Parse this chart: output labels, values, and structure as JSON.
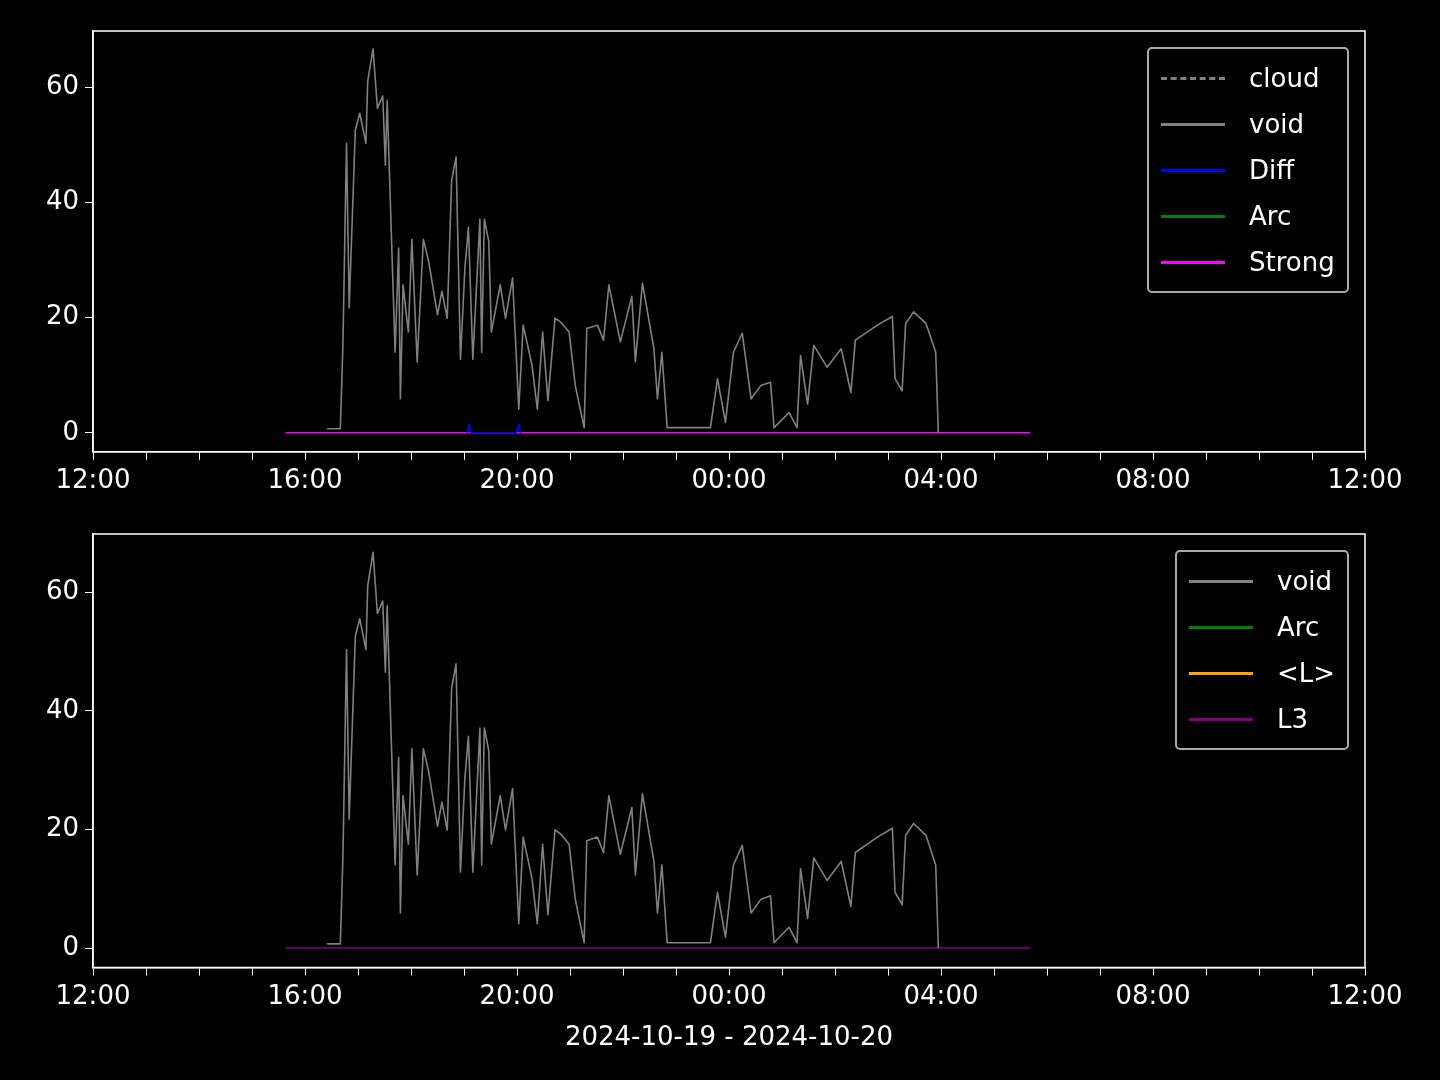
{
  "chart_data": [
    {
      "type": "line",
      "xlim": [
        "2024-10-19T12:00",
        "2024-10-20T12:00"
      ],
      "ylim": [
        -3.3,
        69.8
      ],
      "yticks": [
        0,
        20,
        40,
        60
      ],
      "grid": false,
      "legend": "top right",
      "xticks": [
        {
          "value": "2024-10-19T12:00",
          "label": "12:00"
        },
        {
          "value": "2024-10-19T13:00",
          "label": null
        },
        {
          "value": "2024-10-19T14:00",
          "label": null
        },
        {
          "value": "2024-10-19T15:00",
          "label": null
        },
        {
          "value": "2024-10-19T16:00",
          "label": "16:00"
        },
        {
          "value": "2024-10-19T17:00",
          "label": null
        },
        {
          "value": "2024-10-19T18:00",
          "label": null
        },
        {
          "value": "2024-10-19T19:00",
          "label": null
        },
        {
          "value": "2024-10-19T20:00",
          "label": "20:00"
        },
        {
          "value": "2024-10-19T21:00",
          "label": null
        },
        {
          "value": "2024-10-19T22:00",
          "label": null
        },
        {
          "value": "2024-10-19T23:00",
          "label": null
        },
        {
          "value": "2024-10-20T00:00",
          "label": "00:00"
        },
        {
          "value": "2024-10-20T01:00",
          "label": null
        },
        {
          "value": "2024-10-20T02:00",
          "label": null
        },
        {
          "value": "2024-10-20T03:00",
          "label": null
        },
        {
          "value": "2024-10-20T04:00",
          "label": "04:00"
        },
        {
          "value": "2024-10-20T05:00",
          "label": null
        },
        {
          "value": "2024-10-20T06:00",
          "label": null
        },
        {
          "value": "2024-10-20T07:00",
          "label": null
        },
        {
          "value": "2024-10-20T08:00",
          "label": "08:00"
        },
        {
          "value": "2024-10-20T09:00",
          "label": null
        },
        {
          "value": "2024-10-20T10:00",
          "label": null
        },
        {
          "value": "2024-10-20T11:00",
          "label": null
        },
        {
          "value": "2024-10-20T12:00",
          "label": "12:00"
        }
      ],
      "series": [
        {
          "name": "cloud",
          "color": "#808080",
          "line_style": "dashed"
        },
        {
          "name": "void",
          "color": "#808080",
          "x": [
            "2024-10-19T16:25",
            "2024-10-19T16:40",
            "2024-10-19T16:43",
            "2024-10-19T16:47",
            "2024-10-19T16:50",
            "2024-10-19T16:57",
            "2024-10-19T17:02",
            "2024-10-19T17:09",
            "2024-10-19T17:11",
            "2024-10-19T17:17",
            "2024-10-19T17:22",
            "2024-10-19T17:28",
            "2024-10-19T17:31",
            "2024-10-19T17:33",
            "2024-10-19T17:39",
            "2024-10-19T17:42",
            "2024-10-19T17:46",
            "2024-10-19T17:48",
            "2024-10-19T17:51",
            "2024-10-19T17:57",
            "2024-10-19T18:01",
            "2024-10-19T18:07",
            "2024-10-19T18:14",
            "2024-10-19T18:20",
            "2024-10-19T18:30",
            "2024-10-19T18:35",
            "2024-10-19T18:41",
            "2024-10-19T18:46",
            "2024-10-19T18:51",
            "2024-10-19T18:56",
            "2024-10-19T19:01",
            "2024-10-19T19:05",
            "2024-10-19T19:10",
            "2024-10-19T19:18",
            "2024-10-19T19:20",
            "2024-10-19T19:23",
            "2024-10-19T19:28",
            "2024-10-19T19:31",
            "2024-10-19T19:41",
            "2024-10-19T19:47",
            "2024-10-19T19:55",
            "2024-10-19T20:02",
            "2024-10-19T20:07",
            "2024-10-19T20:17",
            "2024-10-19T20:23",
            "2024-10-19T20:29",
            "2024-10-19T20:35",
            "2024-10-19T20:43",
            "2024-10-19T20:49",
            "2024-10-19T20:59",
            "2024-10-19T21:06",
            "2024-10-19T21:16",
            "2024-10-19T21:19",
            "2024-10-19T21:31",
            "2024-10-19T21:38",
            "2024-10-19T21:44",
            "2024-10-19T21:57",
            "2024-10-19T22:10",
            "2024-10-19T22:14",
            "2024-10-19T22:22",
            "2024-10-19T22:35",
            "2024-10-19T22:39",
            "2024-10-19T22:44",
            "2024-10-19T22:50",
            "2024-10-19T23:39",
            "2024-10-19T23:47",
            "2024-10-19T23:56",
            "2024-10-20T00:05",
            "2024-10-20T00:15",
            "2024-10-20T00:25",
            "2024-10-20T00:36",
            "2024-10-20T00:47",
            "2024-10-20T00:51",
            "2024-10-20T01:08",
            "2024-10-20T01:17",
            "2024-10-20T01:21",
            "2024-10-20T01:29",
            "2024-10-20T01:36",
            "2024-10-20T01:51",
            "2024-10-20T02:07",
            "2024-10-20T02:18",
            "2024-10-20T02:23",
            "2024-10-20T02:48",
            "2024-10-20T03:05",
            "2024-10-20T03:08",
            "2024-10-20T03:16",
            "2024-10-20T03:20",
            "2024-10-20T03:29",
            "2024-10-20T03:43",
            "2024-10-20T03:54",
            "2024-10-20T03:57"
          ],
          "values": [
            0.7,
            0.7,
            15.8,
            50.3,
            21.7,
            52.6,
            55.5,
            50.3,
            61.1,
            66.7,
            56.4,
            58.5,
            46.5,
            57.7,
            28.6,
            14,
            32.1,
            5.9,
            25.7,
            17.5,
            33.6,
            12.3,
            33.6,
            29.8,
            20.5,
            24.6,
            19.9,
            43.8,
            47.9,
            12.8,
            28.6,
            35.7,
            12.8,
            37.1,
            14,
            37.1,
            33.3,
            17.5,
            25.7,
            19.9,
            26.9,
            4.1,
            18.7,
            11.7,
            4.1,
            17.5,
            5.6,
            19.9,
            19.3,
            17.5,
            8.2,
            0.9,
            18.1,
            18.7,
            16.1,
            25.7,
            15.8,
            23.7,
            12.3,
            26,
            14.6,
            5.9,
            14,
            0.9,
            0.9,
            9.4,
            1.8,
            14,
            17.3,
            5.9,
            8.2,
            8.8,
            0.9,
            3.5,
            0.9,
            13.4,
            5,
            15.2,
            11.4,
            14.6,
            7,
            16.1,
            18.7,
            20.2,
            9.4,
            7.3,
            19,
            21,
            19,
            14,
            0
          ]
        },
        {
          "name": "Diff",
          "color": "#0000ff",
          "x": [
            "2024-10-19T19:04",
            "2024-10-19T19:06",
            "2024-10-19T19:08",
            "2024-10-19T19:59",
            "2024-10-19T20:02",
            "2024-10-19T20:04"
          ],
          "values": [
            0,
            1.5,
            0,
            0,
            1.5,
            0
          ]
        },
        {
          "name": "Arc",
          "color": "#008000"
        },
        {
          "name": "Strong",
          "color": "#ff00ff",
          "x": [
            "2024-10-19T15:38",
            "2024-10-20T05:41"
          ],
          "values": [
            0,
            0
          ]
        }
      ]
    },
    {
      "type": "line",
      "xlim": [
        "2024-10-19T12:00",
        "2024-10-20T12:00"
      ],
      "ylim": [
        -3.3,
        69.8
      ],
      "yticks": [
        0,
        20,
        40,
        60
      ],
      "grid": false,
      "legend": "top right",
      "xlabel": "2024-10-19 - 2024-10-20",
      "xticks": [
        {
          "value": "2024-10-19T12:00",
          "label": "12:00"
        },
        {
          "value": "2024-10-19T13:00",
          "label": null
        },
        {
          "value": "2024-10-19T14:00",
          "label": null
        },
        {
          "value": "2024-10-19T15:00",
          "label": null
        },
        {
          "value": "2024-10-19T16:00",
          "label": "16:00"
        },
        {
          "value": "2024-10-19T17:00",
          "label": null
        },
        {
          "value": "2024-10-19T18:00",
          "label": null
        },
        {
          "value": "2024-10-19T19:00",
          "label": null
        },
        {
          "value": "2024-10-19T20:00",
          "label": "20:00"
        },
        {
          "value": "2024-10-19T21:00",
          "label": null
        },
        {
          "value": "2024-10-19T22:00",
          "label": null
        },
        {
          "value": "2024-10-19T23:00",
          "label": null
        },
        {
          "value": "2024-10-20T00:00",
          "label": "00:00"
        },
        {
          "value": "2024-10-20T01:00",
          "label": null
        },
        {
          "value": "2024-10-20T02:00",
          "label": null
        },
        {
          "value": "2024-10-20T03:00",
          "label": null
        },
        {
          "value": "2024-10-20T04:00",
          "label": "04:00"
        },
        {
          "value": "2024-10-20T05:00",
          "label": null
        },
        {
          "value": "2024-10-20T06:00",
          "label": null
        },
        {
          "value": "2024-10-20T07:00",
          "label": null
        },
        {
          "value": "2024-10-20T08:00",
          "label": "08:00"
        },
        {
          "value": "2024-10-20T09:00",
          "label": null
        },
        {
          "value": "2024-10-20T10:00",
          "label": null
        },
        {
          "value": "2024-10-20T11:00",
          "label": null
        },
        {
          "value": "2024-10-20T12:00",
          "label": "12:00"
        }
      ],
      "series": [
        {
          "name": "void",
          "color": "#808080",
          "x": [
            "2024-10-19T16:25",
            "2024-10-19T16:40",
            "2024-10-19T16:43",
            "2024-10-19T16:47",
            "2024-10-19T16:50",
            "2024-10-19T16:57",
            "2024-10-19T17:02",
            "2024-10-19T17:09",
            "2024-10-19T17:11",
            "2024-10-19T17:17",
            "2024-10-19T17:22",
            "2024-10-19T17:28",
            "2024-10-19T17:31",
            "2024-10-19T17:33",
            "2024-10-19T17:39",
            "2024-10-19T17:42",
            "2024-10-19T17:46",
            "2024-10-19T17:48",
            "2024-10-19T17:51",
            "2024-10-19T17:57",
            "2024-10-19T18:01",
            "2024-10-19T18:07",
            "2024-10-19T18:14",
            "2024-10-19T18:20",
            "2024-10-19T18:30",
            "2024-10-19T18:35",
            "2024-10-19T18:41",
            "2024-10-19T18:46",
            "2024-10-19T18:51",
            "2024-10-19T18:56",
            "2024-10-19T19:01",
            "2024-10-19T19:05",
            "2024-10-19T19:10",
            "2024-10-19T19:18",
            "2024-10-19T19:20",
            "2024-10-19T19:23",
            "2024-10-19T19:28",
            "2024-10-19T19:31",
            "2024-10-19T19:41",
            "2024-10-19T19:47",
            "2024-10-19T19:55",
            "2024-10-19T20:02",
            "2024-10-19T20:07",
            "2024-10-19T20:17",
            "2024-10-19T20:23",
            "2024-10-19T20:29",
            "2024-10-19T20:35",
            "2024-10-19T20:43",
            "2024-10-19T20:49",
            "2024-10-19T20:59",
            "2024-10-19T21:06",
            "2024-10-19T21:16",
            "2024-10-19T21:19",
            "2024-10-19T21:31",
            "2024-10-19T21:38",
            "2024-10-19T21:44",
            "2024-10-19T21:57",
            "2024-10-19T22:10",
            "2024-10-19T22:14",
            "2024-10-19T22:22",
            "2024-10-19T22:35",
            "2024-10-19T22:39",
            "2024-10-19T22:44",
            "2024-10-19T22:50",
            "2024-10-19T23:39",
            "2024-10-19T23:47",
            "2024-10-19T23:56",
            "2024-10-20T00:05",
            "2024-10-20T00:15",
            "2024-10-20T00:25",
            "2024-10-20T00:36",
            "2024-10-20T00:47",
            "2024-10-20T00:51",
            "2024-10-20T01:08",
            "2024-10-20T01:17",
            "2024-10-20T01:21",
            "2024-10-20T01:29",
            "2024-10-20T01:36",
            "2024-10-20T01:51",
            "2024-10-20T02:07",
            "2024-10-20T02:18",
            "2024-10-20T02:23",
            "2024-10-20T02:48",
            "2024-10-20T03:05",
            "2024-10-20T03:08",
            "2024-10-20T03:16",
            "2024-10-20T03:20",
            "2024-10-20T03:29",
            "2024-10-20T03:43",
            "2024-10-20T03:54",
            "2024-10-20T03:57"
          ],
          "values": [
            0.7,
            0.7,
            15.8,
            50.3,
            21.7,
            52.6,
            55.5,
            50.3,
            61.1,
            66.7,
            56.4,
            58.5,
            46.5,
            57.7,
            28.6,
            14,
            32.1,
            5.9,
            25.7,
            17.5,
            33.6,
            12.3,
            33.6,
            29.8,
            20.5,
            24.6,
            19.9,
            43.8,
            47.9,
            12.8,
            28.6,
            35.7,
            12.8,
            37.1,
            14,
            37.1,
            33.3,
            17.5,
            25.7,
            19.9,
            26.9,
            4.1,
            18.7,
            11.7,
            4.1,
            17.5,
            5.6,
            19.9,
            19.3,
            17.5,
            8.2,
            0.9,
            18.1,
            18.7,
            16.1,
            25.7,
            15.8,
            23.7,
            12.3,
            26,
            14.6,
            5.9,
            14,
            0.9,
            0.9,
            9.4,
            1.8,
            14,
            17.3,
            5.9,
            8.2,
            8.8,
            0.9,
            3.5,
            0.9,
            13.4,
            5,
            15.2,
            11.4,
            14.6,
            7,
            16.1,
            18.7,
            20.2,
            9.4,
            7.3,
            19,
            21,
            19,
            14,
            0
          ]
        },
        {
          "name": "Arc",
          "color": "#008000"
        },
        {
          "name": "<L>",
          "color": "#ffa500"
        },
        {
          "name": "L3",
          "color": "#800080",
          "x": [
            "2024-10-19T15:38",
            "2024-10-20T05:41"
          ],
          "values": [
            0,
            0
          ]
        }
      ]
    }
  ]
}
